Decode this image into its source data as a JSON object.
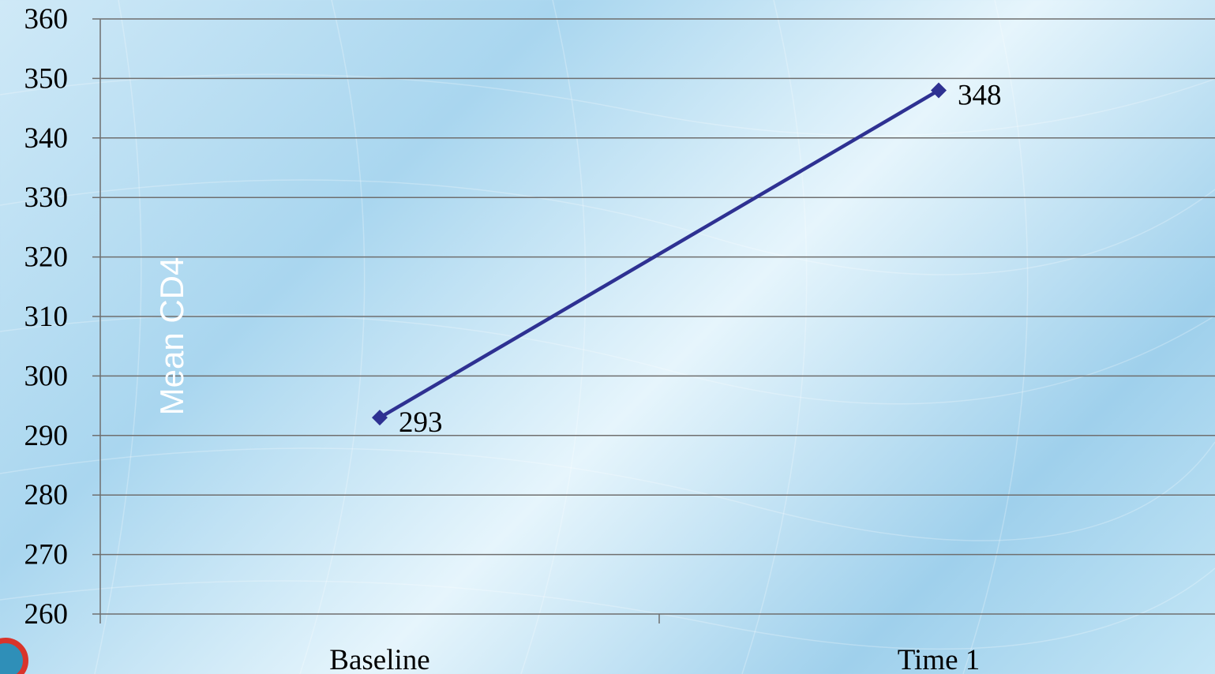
{
  "colors": {
    "line": "#2e3192",
    "marker": "#2e3192",
    "gridline": "#6f6f6f",
    "axis_title": "#ffffff"
  },
  "chart_data": {
    "type": "line",
    "categories": [
      "Baseline",
      "Time 1"
    ],
    "series": [
      {
        "values": [
          293,
          348
        ]
      }
    ],
    "data_labels": [
      "293",
      "348"
    ],
    "title": "",
    "xlabel": "",
    "ylabel": "Mean CD4",
    "ylim": [
      260,
      360
    ],
    "ytick_step": 10,
    "yticks": [
      "260",
      "270",
      "280",
      "290",
      "300",
      "310",
      "320",
      "330",
      "340",
      "350",
      "360"
    ],
    "grid": true,
    "legend": "none"
  }
}
